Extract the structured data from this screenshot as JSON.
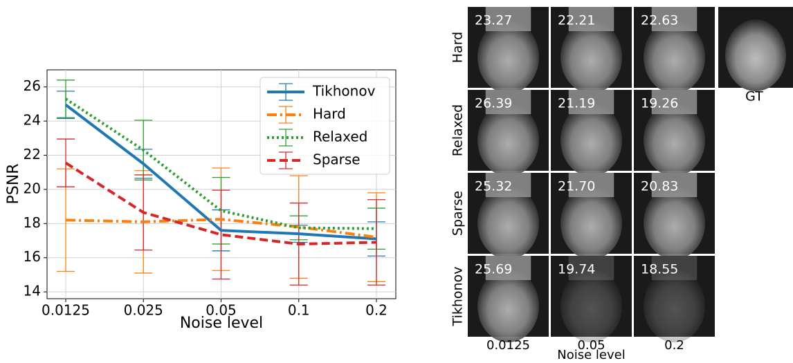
{
  "chart_data": {
    "type": "line",
    "xlabel": "Noise level",
    "ylabel": "PSNR",
    "categories": [
      "0.0125",
      "0.025",
      "0.05",
      "0.1",
      "0.2"
    ],
    "ylim": [
      13.6,
      27.0
    ],
    "yticks": [
      14,
      16,
      18,
      20,
      22,
      24,
      26
    ],
    "grid": true,
    "legend": "upper right",
    "series": [
      {
        "name": "Tikhonov",
        "color": "#1f77b4",
        "style": "solid",
        "values": [
          24.95,
          21.5,
          17.6,
          17.4,
          17.1
        ],
        "errors": [
          0.8,
          0.85,
          1.2,
          0.5,
          1.0
        ]
      },
      {
        "name": "Hard",
        "color": "#ff7f0e",
        "style": "dashdot",
        "values": [
          18.2,
          18.1,
          18.25,
          17.8,
          17.2
        ],
        "errors": [
          3.0,
          3.0,
          3.0,
          3.0,
          2.6
        ]
      },
      {
        "name": "Relaxed",
        "color": "#2ca02c",
        "style": "dotted",
        "values": [
          25.3,
          22.3,
          18.75,
          17.75,
          17.7
        ],
        "errors": [
          1.1,
          1.75,
          1.95,
          0.7,
          1.2
        ]
      },
      {
        "name": "Sparse",
        "color": "#d62728",
        "style": "dashed",
        "values": [
          21.55,
          18.65,
          17.35,
          16.8,
          16.9
        ],
        "errors": [
          1.4,
          2.2,
          2.6,
          2.4,
          2.5
        ]
      }
    ]
  },
  "image_grid": {
    "row_labels": [
      "Hard",
      "Relaxed",
      "Sparse",
      "Tikhonov"
    ],
    "col_labels": [
      "0.0125",
      "0.05",
      "0.2"
    ],
    "xlabel": "Noise level",
    "gt_label": "GT",
    "cells": [
      [
        "23.27",
        "22.21",
        "22.63"
      ],
      [
        "26.39",
        "21.19",
        "19.26"
      ],
      [
        "25.32",
        "21.70",
        "20.83"
      ],
      [
        "25.69",
        "19.74",
        "18.55"
      ]
    ]
  }
}
